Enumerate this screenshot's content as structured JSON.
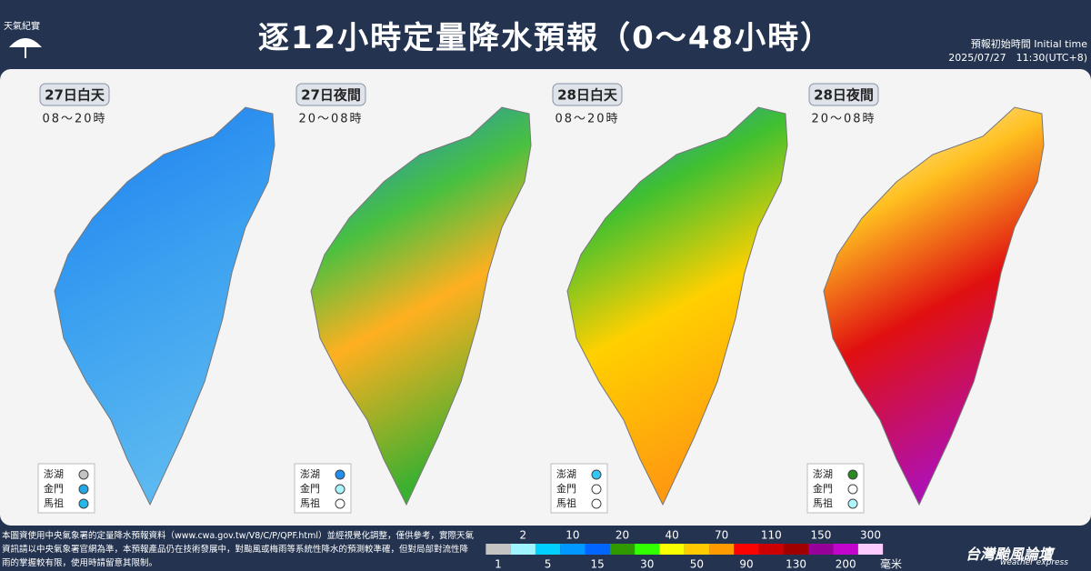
{
  "header": {
    "logo": "天氣紀實",
    "title": "逐12小時定量降水預報（0～48小時）",
    "init_label": "預報初始時間 Initial time",
    "init_time": "2025/07/27　11:30(UTC+8)"
  },
  "panels": [
    {
      "day": "27日白天",
      "time": "08～20時",
      "islands": [
        {
          "name": "澎湖",
          "color": "#c4c4c4"
        },
        {
          "name": "金門",
          "color": "#22a8e8"
        },
        {
          "name": "馬祖",
          "color": "#22b8e8"
        }
      ]
    },
    {
      "day": "27日夜間",
      "time": "20～08時",
      "islands": [
        {
          "name": "澎湖",
          "color": "#1e8ef0"
        },
        {
          "name": "金門",
          "color": "#a8f4ff"
        },
        {
          "name": "馬祖",
          "color": "#ffffff"
        }
      ]
    },
    {
      "day": "28日白天",
      "time": "08～20時",
      "islands": [
        {
          "name": "澎湖",
          "color": "#34c6f4"
        },
        {
          "name": "金門",
          "color": "#ffffff"
        },
        {
          "name": "馬祖",
          "color": "#ffffff"
        }
      ]
    },
    {
      "day": "28日夜間",
      "time": "20～08時",
      "islands": [
        {
          "name": "澎湖",
          "color": "#2a8a22"
        },
        {
          "name": "金門",
          "color": "#ffffff"
        },
        {
          "name": "馬祖",
          "color": "#b0f6ff"
        }
      ]
    }
  ],
  "footer": {
    "disclaimer": "本圖資使用中央氣象署的定量降水預報資料（www.cwa.gov.tw/V8/C/P/QPF.html）並經視覺化調整，僅供參考，實際天氣資訊請以中央氣象署官網為準，本預報產品仍在技術發展中，對颱風或梅雨等系統性降水的預測較準確，但對局部對流性降雨的掌握較有限，使用時請留意其限制。",
    "brand": "台灣颱風論壇",
    "brand_en": "weather express"
  },
  "scale": {
    "thresholds": [
      1,
      2,
      5,
      10,
      15,
      20,
      30,
      40,
      50,
      70,
      90,
      110,
      130,
      150,
      200,
      300
    ],
    "colors": [
      "#c4c4c4",
      "#a0f4ff",
      "#00cfff",
      "#0198ff",
      "#0165ff",
      "#309901",
      "#32ff00",
      "#f8ff00",
      "#ffcb00",
      "#ff9a00",
      "#fa0300",
      "#cc0003",
      "#a00000",
      "#98009a",
      "#c304cc",
      "#fecbff"
    ],
    "unit": "毫米"
  }
}
